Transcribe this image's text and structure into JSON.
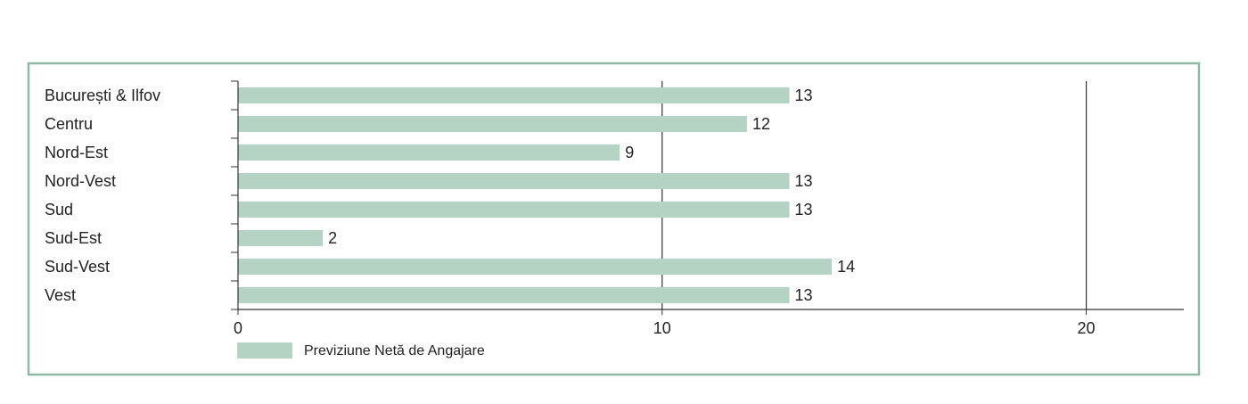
{
  "chart_data": {
    "type": "hbar",
    "categories": [
      "București & Ilfov",
      "Centru",
      "Nord-Est",
      "Nord-Vest",
      "Sud",
      "Sud-Est",
      "Sud-Vest",
      "Vest"
    ],
    "series": [
      {
        "name": "Previziune Netă de Angajare",
        "color": "#b5d3c5",
        "values": [
          13,
          12,
          9,
          13,
          13,
          2,
          14,
          13
        ]
      }
    ],
    "xlim": [
      0,
      22.3
    ],
    "xticks": [
      0,
      10,
      20
    ],
    "grid": true
  }
}
